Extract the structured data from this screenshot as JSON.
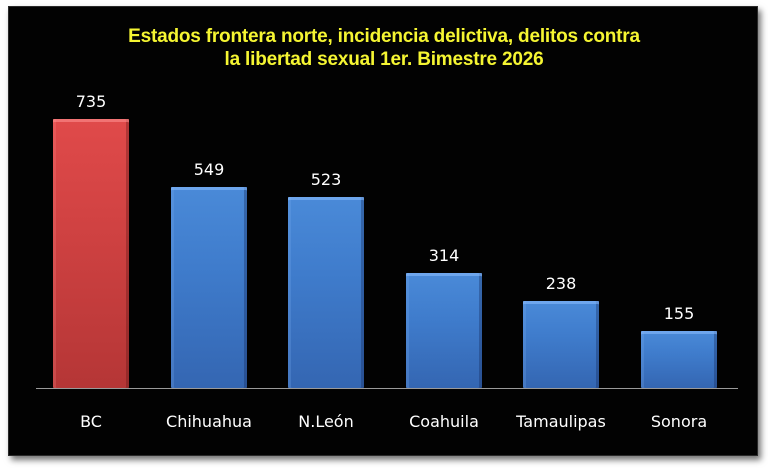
{
  "chart_data": {
    "type": "bar",
    "title": "Estados frontera norte, incidencia delictiva, delitos contra la libertad sexual 1er. Bimestre 2026",
    "title_lines": [
      "Estados frontera norte, incidencia delictiva, delitos contra",
      "la libertad sexual 1er. Bimestre 2026"
    ],
    "categories": [
      "BC",
      "Chihuahua",
      "N.León",
      "Coahuila",
      "Tamaulipas",
      "Sonora"
    ],
    "values": [
      735,
      549,
      523,
      314,
      238,
      155
    ],
    "value_labels": [
      "735",
      "549",
      "523",
      "314",
      "238",
      "155"
    ],
    "bar_colors": [
      "#d04242",
      "#3f7ccc",
      "#3f7ccc",
      "#3f7ccc",
      "#3f7ccc",
      "#3f7ccc"
    ],
    "highlight_color": "#d04242",
    "series_color": "#3f7ccc",
    "title_color": "#f5f532",
    "background_color": "#020202",
    "xlabel": "",
    "ylabel": "",
    "ylim": [
      0,
      800
    ],
    "grid": false,
    "legend": "none",
    "data_labels": true
  }
}
